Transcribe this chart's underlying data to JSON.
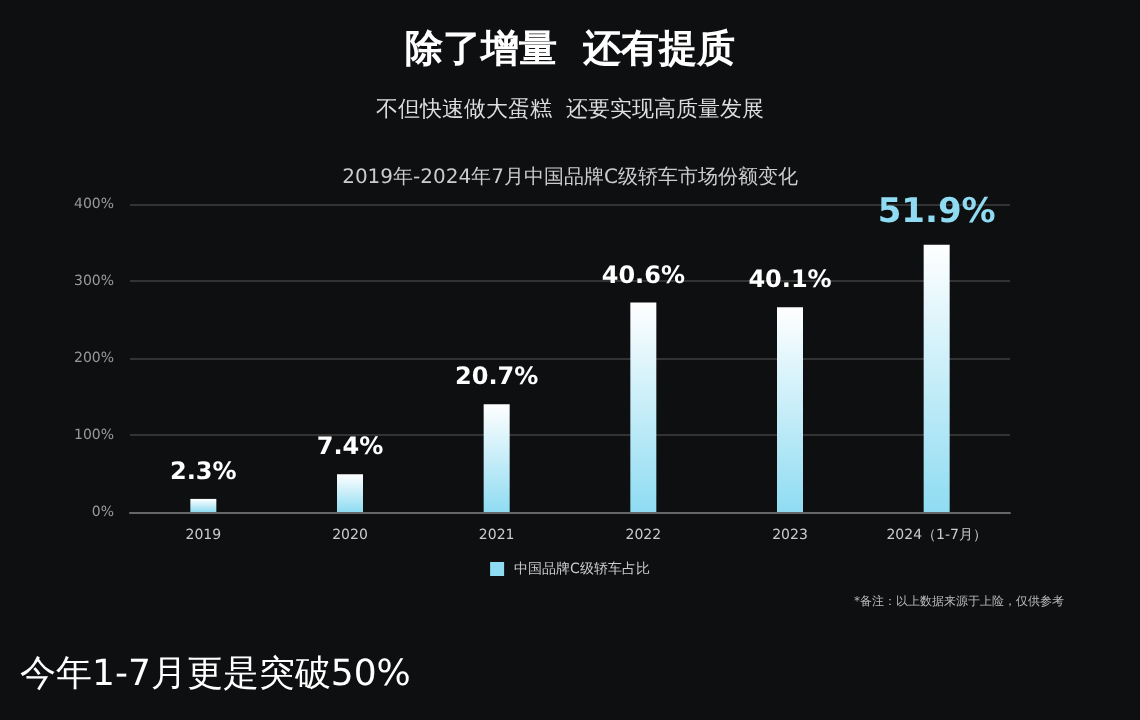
{
  "chart_data": {
    "type": "bar",
    "title": "除了增量  还有提质",
    "subtitle": "不但快速做大蛋糕  还要实现高质量发展",
    "xlabel": "2019年-2024年7月中国品牌C级轿车市场份额变化",
    "categories": [
      "2019",
      "2020",
      "2021",
      "2022",
      "2023",
      "2024（1-7月）"
    ],
    "series": [
      {
        "name": "中国品牌C级轿车占比",
        "color": "#8fdcf2",
        "values": [
          17,
          49,
          140,
          272,
          266,
          347
        ]
      }
    ],
    "ylim": [
      0,
      400
    ],
    "yticks": [
      {
        "value": 0,
        "label": "0%"
      },
      {
        "value": 100,
        "label": "100%"
      },
      {
        "value": 200,
        "label": "200%"
      },
      {
        "value": 300,
        "label": "300%"
      },
      {
        "value": 400,
        "label": "400%"
      }
    ],
    "grid": "y",
    "legend": "bottom",
    "annotations": [
      {
        "text": "2.3%",
        "x": "2019",
        "y": 17
      },
      {
        "text": "7.4%",
        "x": "2020",
        "y": 49
      },
      {
        "text": "20.7%",
        "x": "2021",
        "y": 140
      },
      {
        "text": "40.6%",
        "x": "2022",
        "y": 272
      },
      {
        "text": "40.1%",
        "x": "2023",
        "y": 266
      },
      {
        "text": "51.9%",
        "x": "2024（1-7月）",
        "y": 347
      },
      "*备注：以上数据来源于上险，仅供参考",
      "今年1-7月更是突破50%"
    ]
  }
}
